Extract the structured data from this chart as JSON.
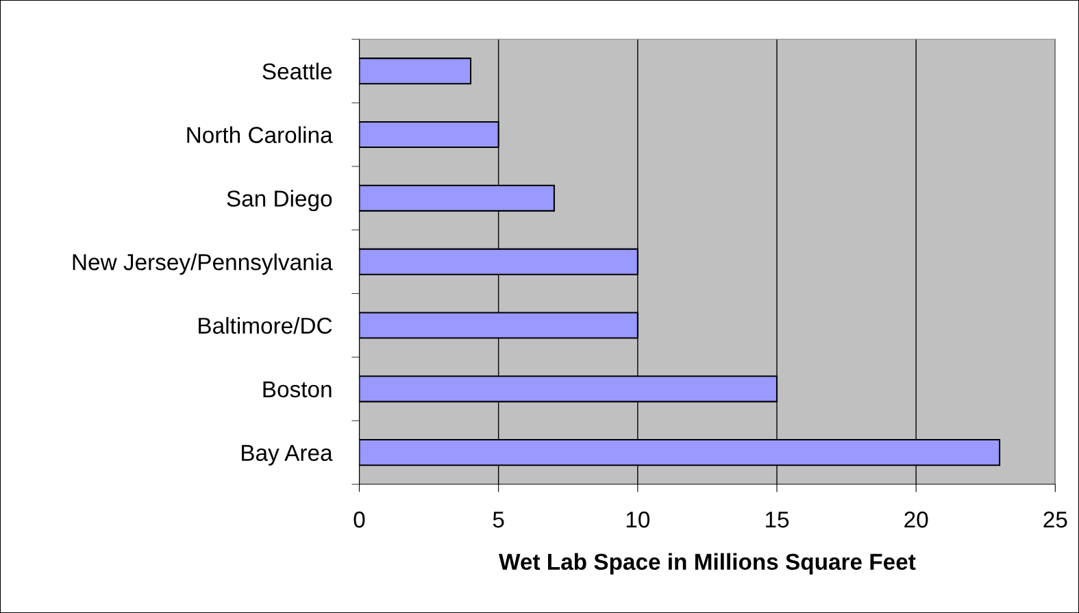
{
  "chart_data": {
    "type": "bar",
    "orientation": "horizontal",
    "xlabel": "Wet Lab Space in Millions Square Feet",
    "categories": [
      "Seattle",
      "North Carolina",
      "San Diego",
      "New Jersey/Pennsylvania",
      "Baltimore/DC",
      "Boston",
      "Bay Area"
    ],
    "values": [
      4,
      5,
      7,
      10,
      10,
      15,
      23
    ],
    "color": "#9999ff",
    "xlim": [
      0,
      25
    ],
    "xticks": [
      0,
      5,
      10,
      15,
      20,
      25
    ],
    "grid": "x"
  }
}
